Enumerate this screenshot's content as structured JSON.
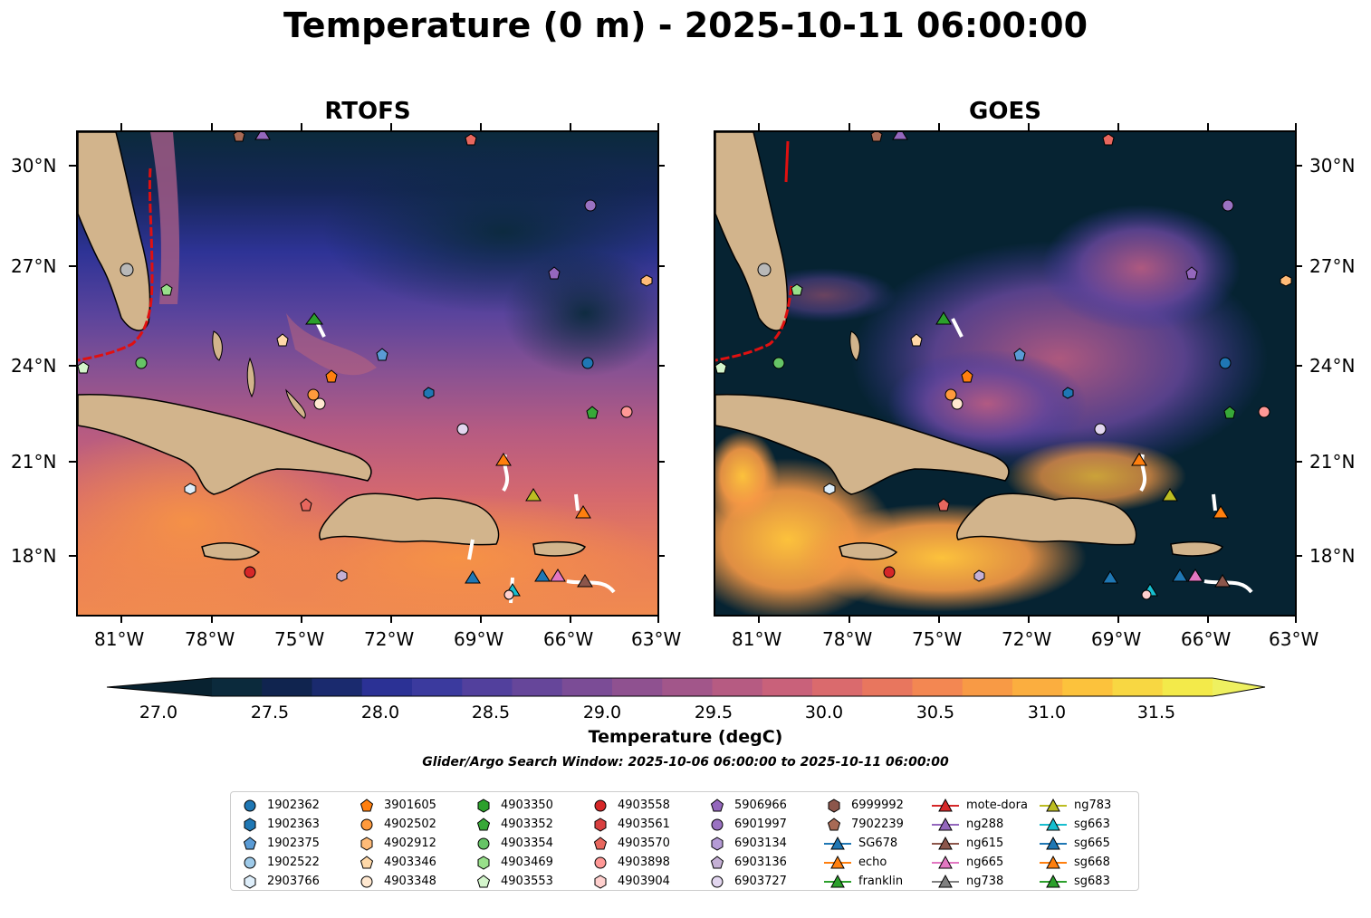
{
  "title": "Temperature (0 m) - 2025-10-11 06:00:00",
  "panels": [
    {
      "name": "RTOFS"
    },
    {
      "name": "GOES"
    }
  ],
  "lat_labels": [
    "30°N",
    "27°N",
    "24°N",
    "21°N",
    "18°N"
  ],
  "lon_labels": [
    "81°W",
    "78°W",
    "75°W",
    "72°W",
    "69°W",
    "66°W",
    "63°W"
  ],
  "colorbar": {
    "label": "Temperature (degC)",
    "ticks": [
      "27.0",
      "27.5",
      "28.0",
      "28.5",
      "29.0",
      "29.5",
      "30.0",
      "30.5",
      "31.0",
      "31.5"
    ],
    "colors": [
      "#0b2a3c",
      "#10244f",
      "#1a2a6e",
      "#2b3195",
      "#3b3a9e",
      "#52409d",
      "#66469a",
      "#7b4c96",
      "#8f5190",
      "#a2568a",
      "#b65b82",
      "#c9617a",
      "#da6a6d",
      "#e8765e",
      "#f38752",
      "#f89a45",
      "#fbae3f",
      "#fcc23c",
      "#f8d742",
      "#f3ea4a"
    ],
    "extend_low": "#082230",
    "extend_high": "#eef060"
  },
  "subtitle": "Glider/Argo Search Window: 2025-10-06 06:00:00 to 2025-10-11 06:00:00",
  "colors": {
    "land": "#d2b48c",
    "goes_background": "#062332",
    "rtofs_deep": "#0b2a3c"
  },
  "legend": {
    "columns": [
      [
        {
          "label": "1902362",
          "shape": "circle",
          "color": "#1f77b4"
        },
        {
          "label": "1902363",
          "shape": "hexagon",
          "color": "#1f77b4"
        },
        {
          "label": "1902375",
          "shape": "pentagon",
          "color": "#5a9bd5"
        },
        {
          "label": "1902522",
          "shape": "circle",
          "color": "#9ecae9"
        },
        {
          "label": "2903766",
          "shape": "hexagon",
          "color": "#deeefa"
        }
      ],
      [
        {
          "label": "3901605",
          "shape": "pentagon",
          "color": "#ff7f0e"
        },
        {
          "label": "4902502",
          "shape": "circle",
          "color": "#ff9a3c"
        },
        {
          "label": "4902912",
          "shape": "hexagon",
          "color": "#ffbb78"
        },
        {
          "label": "4903346",
          "shape": "pentagon",
          "color": "#ffd8a8"
        },
        {
          "label": "4903348",
          "shape": "circle",
          "color": "#ffe8d0"
        }
      ],
      [
        {
          "label": "4903350",
          "shape": "hexagon",
          "color": "#2ca02c"
        },
        {
          "label": "4903352",
          "shape": "pentagon",
          "color": "#38a838"
        },
        {
          "label": "4903354",
          "shape": "circle",
          "color": "#66c466"
        },
        {
          "label": "4903469",
          "shape": "hexagon",
          "color": "#98df8a"
        },
        {
          "label": "4903553",
          "shape": "pentagon",
          "color": "#d4f5cc"
        }
      ],
      [
        {
          "label": "4903558",
          "shape": "circle",
          "color": "#d62728"
        },
        {
          "label": "4903561",
          "shape": "hexagon",
          "color": "#d84040"
        },
        {
          "label": "4903570",
          "shape": "pentagon",
          "color": "#e8675e"
        },
        {
          "label": "4903898",
          "shape": "circle",
          "color": "#ff9896"
        },
        {
          "label": "4903904",
          "shape": "hexagon",
          "color": "#ffd0ce"
        }
      ],
      [
        {
          "label": "5906966",
          "shape": "pentagon",
          "color": "#9467bd"
        },
        {
          "label": "6901997",
          "shape": "circle",
          "color": "#9a72c2"
        },
        {
          "label": "6903134",
          "shape": "hexagon",
          "color": "#b59bd6"
        },
        {
          "label": "6903136",
          "shape": "pentagon",
          "color": "#c5b0d5"
        },
        {
          "label": "6903727",
          "shape": "circle",
          "color": "#e2d6ef"
        }
      ],
      [
        {
          "label": "6999992",
          "shape": "hexagon",
          "color": "#8c564b"
        },
        {
          "label": "7902239",
          "shape": "pentagon",
          "color": "#a86a55"
        },
        {
          "label": "SG678",
          "shape": "triangle",
          "color": "#1f77b4"
        },
        {
          "label": "echo",
          "shape": "triangle",
          "color": "#ff7f0e"
        },
        {
          "label": "franklin",
          "shape": "triangle",
          "color": "#2ca02c"
        }
      ],
      [
        {
          "label": "mote-dora",
          "shape": "triangle",
          "color": "#d62728"
        },
        {
          "label": "ng288",
          "shape": "triangle",
          "color": "#9467bd"
        },
        {
          "label": "ng615",
          "shape": "triangle",
          "color": "#8c564b"
        },
        {
          "label": "ng665",
          "shape": "triangle",
          "color": "#e377c2"
        },
        {
          "label": "ng738",
          "shape": "triangle",
          "color": "#7f7f7f"
        }
      ],
      [
        {
          "label": "ng783",
          "shape": "triangle",
          "color": "#bcbd22"
        },
        {
          "label": "sg663",
          "shape": "triangle",
          "color": "#17becf"
        },
        {
          "label": "sg665",
          "shape": "triangle",
          "color": "#1f77b4"
        },
        {
          "label": "sg668",
          "shape": "triangle",
          "color": "#ff7f0e"
        },
        {
          "label": "sg683",
          "shape": "triangle",
          "color": "#2ca02c"
        }
      ]
    ]
  }
}
